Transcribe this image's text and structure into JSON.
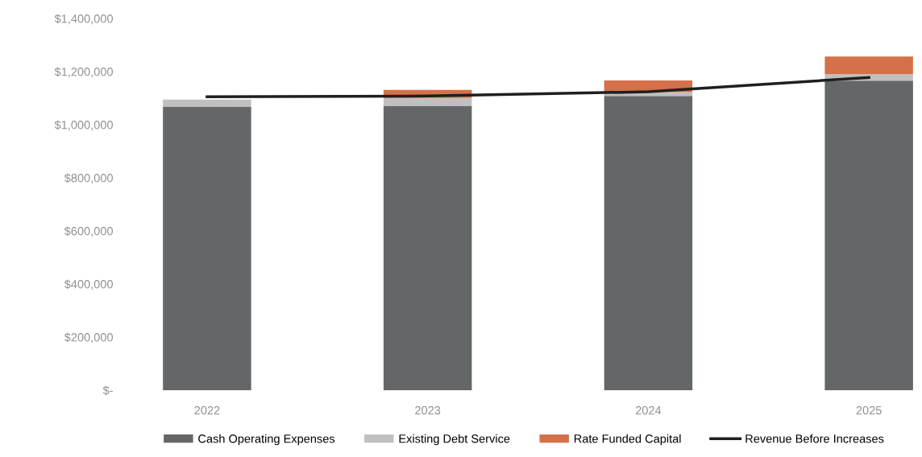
{
  "chart_data": {
    "type": "bar",
    "stacked": true,
    "categories": [
      "2022",
      "2023",
      "2024",
      "2025"
    ],
    "series": [
      {
        "name": "Cash Operating Expenses",
        "color": "#646768",
        "values": [
          1068000,
          1071000,
          1108000,
          1166000
        ]
      },
      {
        "name": "Existing Debt Service",
        "color": "#c0c0c0",
        "values": [
          27000,
          30000,
          15000,
          24000
        ]
      },
      {
        "name": "Rate Funded Capital",
        "color": "#d4714a",
        "values": [
          0,
          30000,
          44000,
          67000
        ]
      },
      {
        "name": "Revenue Before Increases",
        "type": "line",
        "color": "#1f1f1f",
        "values": [
          1105000,
          1108000,
          1124000,
          1178000
        ]
      }
    ],
    "ylim": [
      0,
      1400000
    ],
    "yticks": [
      {
        "value": 0,
        "label": "$-"
      },
      {
        "value": 200000,
        "label": "$200,000"
      },
      {
        "value": 400000,
        "label": "$400,000"
      },
      {
        "value": 600000,
        "label": "$600,000"
      },
      {
        "value": 800000,
        "label": "$800,000"
      },
      {
        "value": 1000000,
        "label": "$1,000,000"
      },
      {
        "value": 1200000,
        "label": "$1,200,000"
      },
      {
        "value": 1400000,
        "label": "$1,400,000"
      }
    ],
    "grid": false,
    "legend": "bottom"
  }
}
